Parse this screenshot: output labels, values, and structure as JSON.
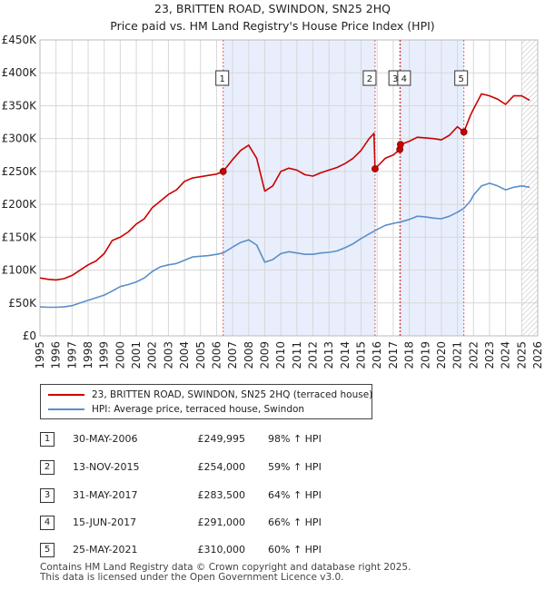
{
  "title_line1": "23, BRITTEN ROAD, SWINDON, SN25 2HQ",
  "title_line2": "Price paid vs. HM Land Registry's House Price Index (HPI)",
  "legend": {
    "property_label": "23, BRITTEN ROAD, SWINDON, SN25 2HQ (terraced house)",
    "hpi_label": "HPI: Average price, terraced house, Swindon"
  },
  "colors": {
    "property": "#cc0000",
    "hpi": "#5b8ec9",
    "shade": "#e8eefc",
    "marker_line": "#cc0000"
  },
  "sales": [
    {
      "num": "1",
      "date": "30-MAY-2006",
      "price": "£249,995",
      "hpi": "98% ↑ HPI"
    },
    {
      "num": "2",
      "date": "13-NOV-2015",
      "price": "£254,000",
      "hpi": "59% ↑ HPI"
    },
    {
      "num": "3",
      "date": "31-MAY-2017",
      "price": "£283,500",
      "hpi": "64% ↑ HPI"
    },
    {
      "num": "4",
      "date": "15-JUN-2017",
      "price": "£291,000",
      "hpi": "66% ↑ HPI"
    },
    {
      "num": "5",
      "date": "25-MAY-2021",
      "price": "£310,000",
      "hpi": "60% ↑ HPI"
    }
  ],
  "footer": {
    "line1": "Contains HM Land Registry data © Crown copyright and database right 2025.",
    "line2": "This data is licensed under the Open Government Licence v3.0."
  },
  "chart_data": {
    "type": "line",
    "title": "23, BRITTEN ROAD, SWINDON, SN25 2HQ",
    "subtitle": "Price paid vs. HM Land Registry's House Price Index (HPI)",
    "xlim": [
      1995,
      2026
    ],
    "ylim": [
      0,
      450000
    ],
    "x_ticks": [
      1995,
      1996,
      1997,
      1998,
      1999,
      2000,
      2001,
      2002,
      2003,
      2004,
      2005,
      2006,
      2007,
      2008,
      2009,
      2010,
      2011,
      2012,
      2013,
      2014,
      2015,
      2016,
      2017,
      2018,
      2019,
      2020,
      2021,
      2022,
      2023,
      2024,
      2025,
      2026
    ],
    "y_ticks": [
      {
        "value": 0,
        "label": "£0"
      },
      {
        "value": 50000,
        "label": "£50K"
      },
      {
        "value": 100000,
        "label": "£100K"
      },
      {
        "value": 150000,
        "label": "£150K"
      },
      {
        "value": 200000,
        "label": "£200K"
      },
      {
        "value": 250000,
        "label": "£250K"
      },
      {
        "value": 300000,
        "label": "£300K"
      },
      {
        "value": 350000,
        "label": "£350K"
      },
      {
        "value": 400000,
        "label": "£400K"
      },
      {
        "value": 450000,
        "label": "£450K"
      }
    ],
    "shaded_ranges": [
      [
        2006.41,
        2015.87
      ],
      [
        2017.41,
        2021.4
      ]
    ],
    "future_hatch_from": 2025.0,
    "markers": [
      {
        "label": "1",
        "x": 2006.41,
        "y": 249995
      },
      {
        "label": "2",
        "x": 2015.87,
        "y": 254000
      },
      {
        "label": "3",
        "x": 2017.41,
        "y": 283500
      },
      {
        "label": "4",
        "x": 2017.45,
        "y": 291000
      },
      {
        "label": "5",
        "x": 2021.4,
        "y": 310000
      }
    ],
    "series": [
      {
        "name": "23, BRITTEN ROAD, SWINDON, SN25 2HQ (terraced house)",
        "x": [
          1995,
          1995.5,
          1996,
          1996.5,
          1997,
          1997.5,
          1998,
          1998.5,
          1999,
          1999.5,
          2000,
          2000.5,
          2001,
          2001.5,
          2002,
          2002.5,
          2003,
          2003.5,
          2004,
          2004.5,
          2005,
          2005.5,
          2006,
          2006.41,
          2007,
          2007.5,
          2008,
          2008.5,
          2009,
          2009.5,
          2010,
          2010.5,
          2011,
          2011.5,
          2012,
          2012.5,
          2013,
          2013.5,
          2014,
          2014.5,
          2015,
          2015.5,
          2015.8,
          2015.87,
          2016.5,
          2017,
          2017.41,
          2017.45,
          2018,
          2018.5,
          2019,
          2019.5,
          2020,
          2020.5,
          2021,
          2021.4,
          2021.8,
          2022,
          2022.5,
          2023,
          2023.5,
          2024,
          2024.5,
          2025,
          2025.5
        ],
        "values": [
          88000,
          86000,
          85000,
          87000,
          92000,
          100000,
          108000,
          114000,
          125000,
          145000,
          150000,
          158000,
          170000,
          178000,
          195000,
          205000,
          215000,
          222000,
          235000,
          240000,
          242000,
          244000,
          246000,
          249995,
          268000,
          282000,
          290000,
          270000,
          220000,
          228000,
          250000,
          255000,
          252000,
          245000,
          243000,
          248000,
          252000,
          256000,
          262000,
          270000,
          282000,
          300000,
          308000,
          254000,
          270000,
          275000,
          283500,
          291000,
          296000,
          302000,
          301000,
          300000,
          298000,
          305000,
          318000,
          310000,
          335000,
          345000,
          368000,
          365000,
          360000,
          352000,
          365000,
          365000,
          358000
        ]
      },
      {
        "name": "HPI: Average price, terraced house, Swindon",
        "x": [
          1995,
          1995.5,
          1996,
          1996.5,
          1997,
          1997.5,
          1998,
          1998.5,
          1999,
          1999.5,
          2000,
          2000.5,
          2001,
          2001.5,
          2002,
          2002.5,
          2003,
          2003.5,
          2004,
          2004.5,
          2005,
          2005.5,
          2006,
          2006.41,
          2007,
          2007.5,
          2008,
          2008.5,
          2009,
          2009.5,
          2010,
          2010.5,
          2011,
          2011.5,
          2012,
          2012.5,
          2013,
          2013.5,
          2014,
          2014.5,
          2015,
          2015.5,
          2015.87,
          2016.5,
          2017,
          2017.41,
          2018,
          2018.5,
          2019,
          2019.5,
          2020,
          2020.5,
          2021,
          2021.4,
          2021.8,
          2022,
          2022.5,
          2023,
          2023.5,
          2024,
          2024.5,
          2025,
          2025.5
        ],
        "values": [
          44000,
          43500,
          43500,
          44000,
          46000,
          50000,
          54000,
          58000,
          62000,
          68000,
          75000,
          78000,
          82000,
          88000,
          98000,
          105000,
          108000,
          110000,
          115000,
          120000,
          121000,
          122000,
          124000,
          126000,
          135000,
          142000,
          146000,
          138000,
          112000,
          116000,
          125000,
          128000,
          126000,
          124000,
          124000,
          126000,
          127000,
          129000,
          134000,
          140000,
          148000,
          155000,
          160000,
          168000,
          171000,
          173000,
          177000,
          182000,
          181000,
          179000,
          178000,
          182000,
          188000,
          194000,
          205000,
          214000,
          228000,
          232000,
          228000,
          222000,
          226000,
          228000,
          226000
        ]
      }
    ]
  }
}
